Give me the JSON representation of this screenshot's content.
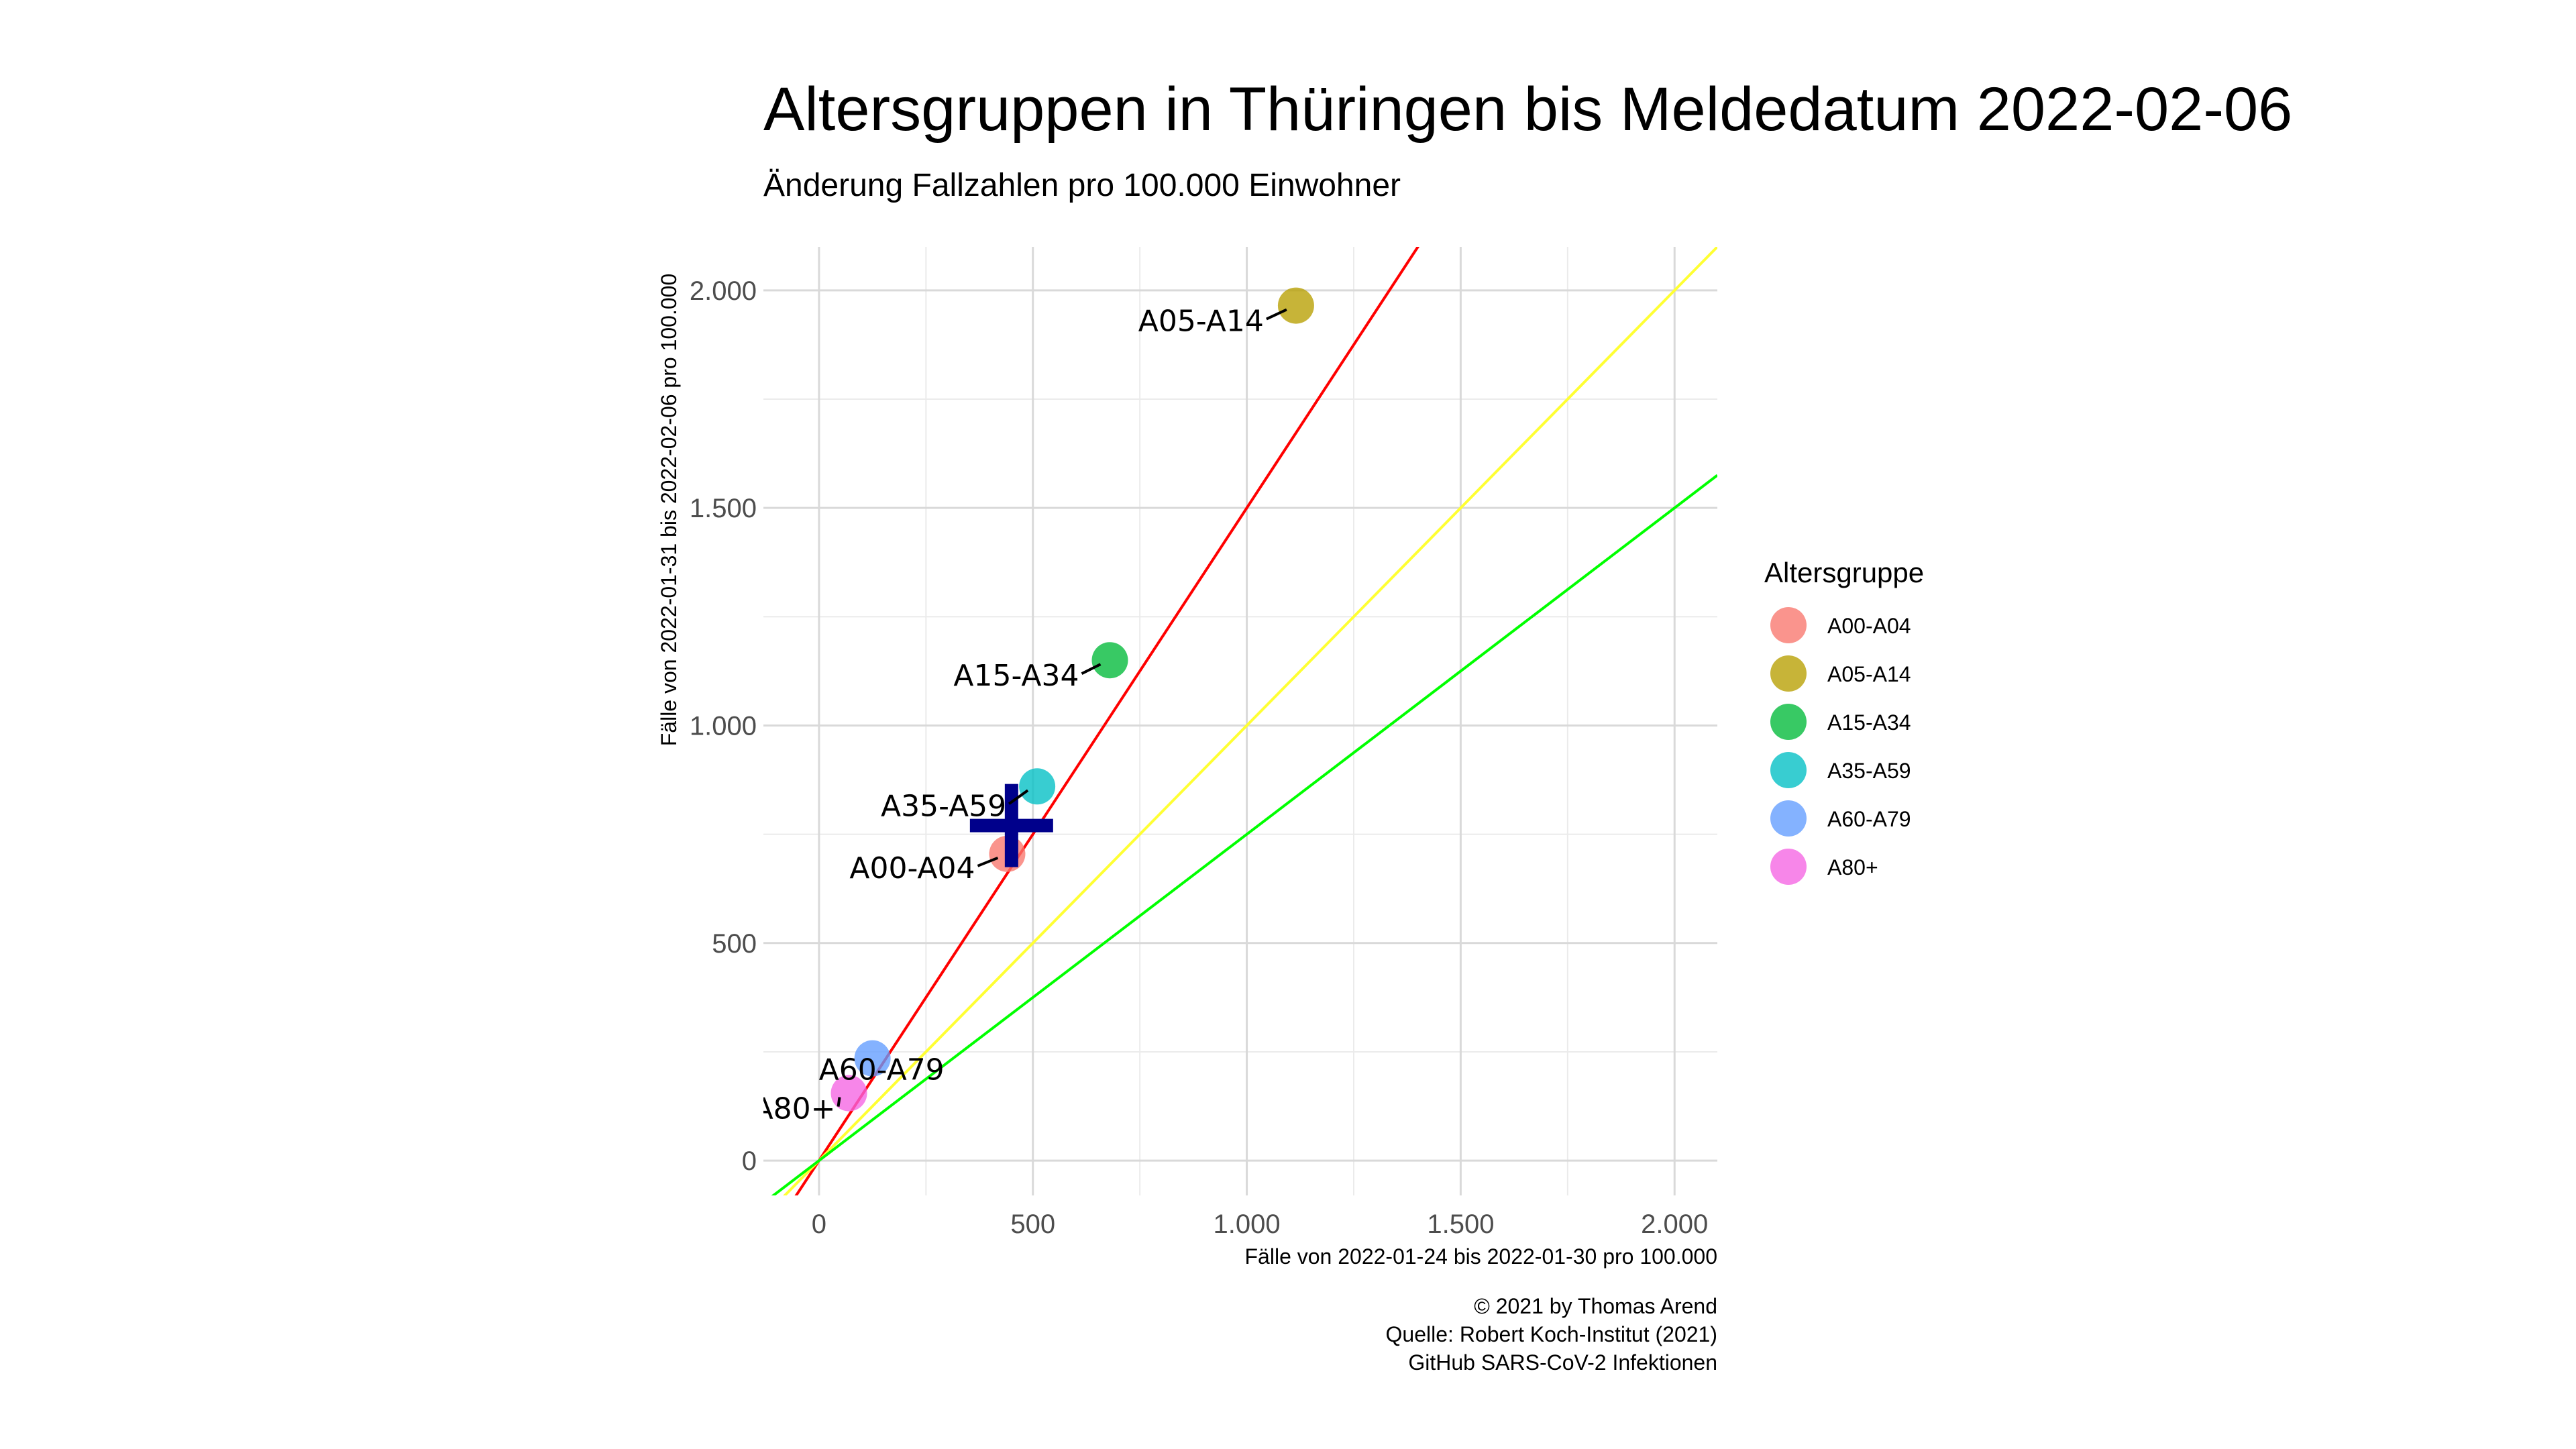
{
  "chart_data": {
    "type": "scatter",
    "title": "Altersgruppen in Thüringen bis Meldedatum 2022-02-06",
    "subtitle": "Änderung Fallzahlen pro 100.000 Einwohner",
    "xlabel": "Fälle von 2022-01-24 bis 2022-01-30 pro 100.000",
    "ylabel": "Fälle von 2022-01-31 bis 2022-02-06 pro 100.000",
    "xlim": [
      -130,
      2100
    ],
    "ylim": [
      -80,
      2100
    ],
    "x_ticks": [
      0,
      500,
      1000,
      1500,
      2000
    ],
    "x_tick_labels": [
      "0",
      "500",
      "1.000",
      "1.500",
      "2.000"
    ],
    "y_ticks": [
      0,
      500,
      1000,
      1500,
      2000
    ],
    "y_tick_labels": [
      "0",
      "500",
      "1.000",
      "1.500",
      "2.000"
    ],
    "grid": true,
    "legend": {
      "title": "Altersgruppe",
      "position": "right"
    },
    "reference_lines": [
      {
        "slope": 1.5,
        "color": "#ff0000"
      },
      {
        "slope": 1.0,
        "color": "#ffff33"
      },
      {
        "slope": 0.75,
        "color": "#00ff00"
      }
    ],
    "series": [
      {
        "name": "A00-A04",
        "x": 440,
        "y": 705,
        "color": "#f8766d"
      },
      {
        "name": "A05-A14",
        "x": 1115,
        "y": 1965,
        "color": "#b79f00"
      },
      {
        "name": "A15-A34",
        "x": 680,
        "y": 1150,
        "color": "#00ba38"
      },
      {
        "name": "A35-A59",
        "x": 510,
        "y": 860,
        "color": "#00bfc4"
      },
      {
        "name": "A60-A79",
        "x": 125,
        "y": 235,
        "color": "#619cff"
      },
      {
        "name": "A80+",
        "x": 70,
        "y": 155,
        "color": "#f564e3"
      }
    ],
    "overall_marker": {
      "x": 450,
      "y": 770,
      "color": "#00008b",
      "symbol": "plus"
    }
  },
  "caption": [
    "© 2021 by Thomas Arend",
    "Quelle: Robert Koch-Institut (2021)",
    "GitHub SARS-CoV-2 Infektionen"
  ]
}
